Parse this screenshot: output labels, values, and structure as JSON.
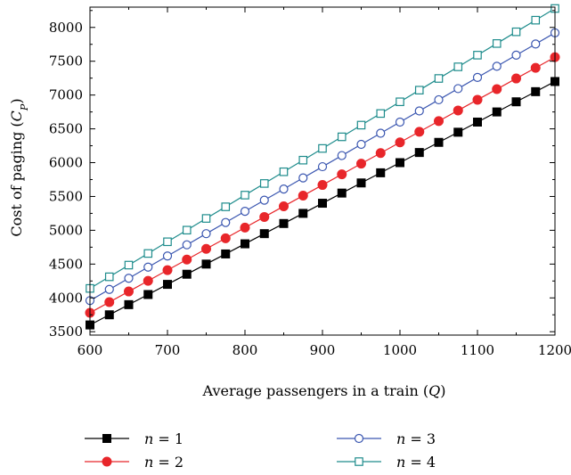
{
  "chart_data": {
    "type": "line",
    "title": "",
    "xlabel": "Average passengers in a train (Q)",
    "ylabel": "Cost of paging (C_P)",
    "xlim": [
      600,
      1200
    ],
    "ylim": [
      3450,
      8300
    ],
    "x_ticks": [
      600,
      700,
      800,
      900,
      1000,
      1100,
      1200
    ],
    "y_ticks": [
      3500,
      4000,
      4500,
      5000,
      5500,
      6000,
      6500,
      7000,
      7500,
      8000
    ],
    "grid": false,
    "legend_position": "bottom",
    "x": [
      600,
      625,
      650,
      675,
      700,
      725,
      750,
      775,
      800,
      825,
      850,
      875,
      900,
      925,
      950,
      975,
      1000,
      1025,
      1050,
      1075,
      1100,
      1125,
      1150,
      1175,
      1200
    ],
    "series": [
      {
        "name": "n = 1",
        "marker": "filled-square",
        "color": "#000000",
        "values": [
          3600,
          3750,
          3900,
          4050,
          4200,
          4350,
          4500,
          4650,
          4800,
          4950,
          5100,
          5250,
          5400,
          5550,
          5700,
          5850,
          6000,
          6150,
          6300,
          6450,
          6600,
          6750,
          6900,
          7050,
          7200
        ]
      },
      {
        "name": "n = 2",
        "marker": "filled-circle",
        "color": "#e8262a",
        "values": [
          3780,
          3937,
          4095,
          4252,
          4410,
          4567,
          4725,
          4882,
          5040,
          5197,
          5355,
          5512,
          5670,
          5827,
          5985,
          6142,
          6300,
          6457,
          6615,
          6772,
          6930,
          7087,
          7245,
          7402,
          7560
        ]
      },
      {
        "name": "n = 3",
        "marker": "open-circle",
        "color": "#3a56b0",
        "values": [
          3960,
          4125,
          4290,
          4455,
          4620,
          4785,
          4950,
          5115,
          5280,
          5445,
          5610,
          5775,
          5940,
          6105,
          6270,
          6435,
          6600,
          6765,
          6930,
          7095,
          7260,
          7425,
          7590,
          7755,
          7920
        ]
      },
      {
        "name": "n = 4",
        "marker": "open-square",
        "color": "#1e8c8c",
        "values": [
          4140,
          4312,
          4485,
          4657,
          4830,
          5002,
          5175,
          5347,
          5520,
          5692,
          5865,
          6037,
          6210,
          6382,
          6555,
          6727,
          6900,
          7072,
          7245,
          7417,
          7590,
          7762,
          7935,
          8107,
          8280
        ]
      }
    ]
  }
}
